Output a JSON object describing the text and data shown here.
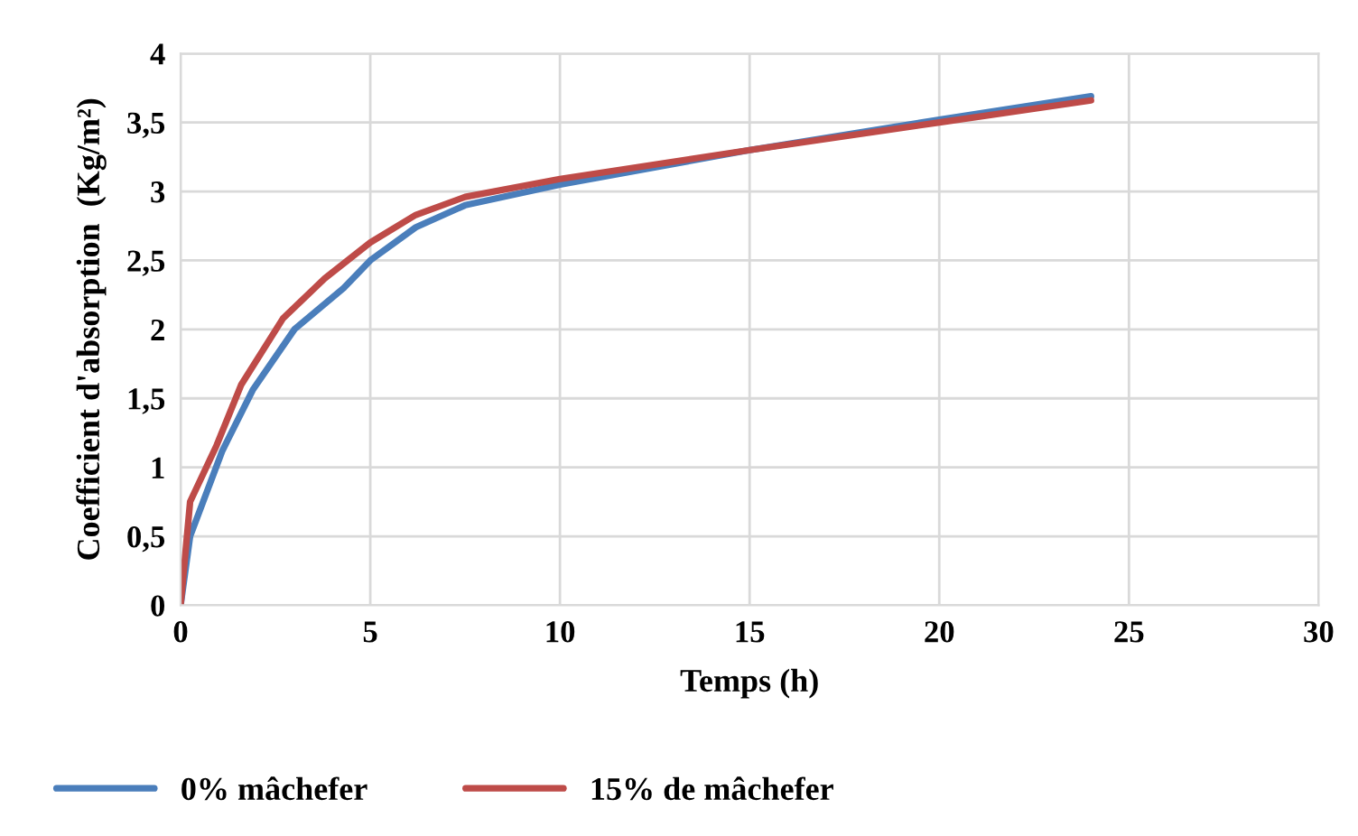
{
  "chart_data": {
    "type": "line",
    "xlabel": "Temps (h)",
    "ylabel": "Coefficient d'absorption  (Kg/m²)",
    "xlim": [
      0,
      30
    ],
    "xticks": [
      0,
      5,
      10,
      15,
      20,
      25,
      30
    ],
    "ylim": [
      0,
      4
    ],
    "yticks": [
      0,
      {
        "value": 0.5,
        "label": "0,5"
      },
      1,
      {
        "value": 1.5,
        "label": "1,5"
      },
      2,
      {
        "value": 2.5,
        "label": "2,5"
      },
      3,
      {
        "value": 3.5,
        "label": "3,5"
      },
      4
    ],
    "grid": true,
    "legend": "bottom",
    "marker": "none",
    "line_style": "solid",
    "series": [
      {
        "name": "0% mâchefer",
        "color": "#4a7ebb",
        "x": [
          0,
          0.25,
          1.1,
          1.9,
          3.0,
          4.3,
          5.0,
          6.2,
          7.5,
          10,
          15,
          20,
          24
        ],
        "values": [
          0,
          0.5,
          1.12,
          1.56,
          2.0,
          2.3,
          2.5,
          2.74,
          2.9,
          3.05,
          3.3,
          3.52,
          3.69
        ]
      },
      {
        "name": "15% de mâchefer",
        "color": "#be4b48",
        "x": [
          0,
          0.25,
          0.95,
          1.6,
          2.7,
          3.8,
          5.0,
          6.2,
          7.5,
          10,
          15,
          20,
          24
        ],
        "values": [
          0,
          0.75,
          1.16,
          1.6,
          2.08,
          2.37,
          2.63,
          2.83,
          2.96,
          3.09,
          3.3,
          3.5,
          3.66
        ]
      }
    ]
  }
}
